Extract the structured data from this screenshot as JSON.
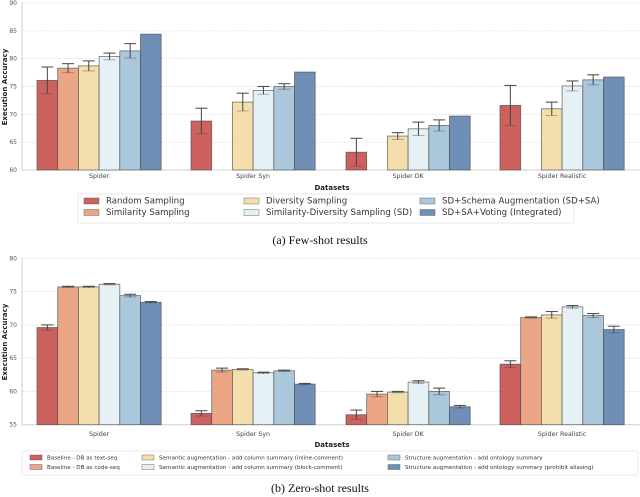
{
  "chart_data": [
    {
      "type": "bar",
      "id": "few-shot",
      "title": "",
      "caption": "(a) Few-shot results",
      "xlabel": "Datasets",
      "ylabel": "Execution Accuracy",
      "ylim": [
        60,
        90
      ],
      "yticks": [
        60,
        65,
        70,
        75,
        80,
        85,
        90
      ],
      "grid": true,
      "legend_placement": "bottom",
      "legend_columns": 3,
      "categories": [
        "Spider",
        "Spider Syn",
        "Spider DK",
        "Spider Realistic"
      ],
      "series": [
        {
          "name": "Random Sampling",
          "color": "#CD615E",
          "values": [
            76.1,
            68.8,
            63.2,
            71.6
          ],
          "errors": [
            2.4,
            2.3,
            2.5,
            3.6
          ]
        },
        {
          "name": "Similarity Sampling",
          "color": "#EBA686",
          "values": [
            78.3,
            null,
            null,
            null
          ],
          "errors": [
            0.8,
            null,
            null,
            null
          ]
        },
        {
          "name": "Diversity Sampling",
          "color": "#F4DFAC",
          "values": [
            78.7,
            72.2,
            66.1,
            71.0
          ],
          "errors": [
            0.9,
            1.6,
            0.6,
            1.2
          ]
        },
        {
          "name": "Similarity-Diversity Sampling (SD)",
          "color": "#E6F1F6",
          "values": [
            80.4,
            74.3,
            67.4,
            75.1
          ],
          "errors": [
            0.6,
            0.7,
            1.2,
            0.9
          ]
        },
        {
          "name": "SD+Schema Augmentation (SD+SA)",
          "color": "#AAC7DC",
          "values": [
            81.4,
            75.0,
            68.0,
            76.2
          ],
          "errors": [
            1.3,
            0.5,
            1.0,
            0.9
          ]
        },
        {
          "name": "SD+SA+Voting (Integrated)",
          "color": "#6F8FB7",
          "values": [
            84.4,
            77.6,
            69.7,
            76.7
          ],
          "errors": [
            null,
            null,
            null,
            null
          ]
        }
      ]
    },
    {
      "type": "bar",
      "id": "zero-shot",
      "title": "",
      "caption": "(b) Zero-shot results",
      "xlabel": "Datasets",
      "ylabel": "Execution Accuracy",
      "ylim": [
        55,
        80
      ],
      "yticks": [
        55,
        60,
        65,
        70,
        75,
        80
      ],
      "grid": true,
      "legend_placement": "bottom",
      "legend_columns": 3,
      "categories": [
        "Spider",
        "Spider Syn",
        "Spider DK",
        "Spider Realistic"
      ],
      "series": [
        {
          "name": "Baseline - DB as text-seq",
          "color": "#CD615E",
          "values": [
            69.6,
            56.7,
            56.5,
            64.1
          ],
          "errors": [
            0.4,
            0.4,
            0.7,
            0.5
          ]
        },
        {
          "name": "Baseline - DB as code-seq",
          "color": "#EBA686",
          "values": [
            75.7,
            63.2,
            59.6,
            71.1
          ],
          "errors": [
            0.1,
            0.3,
            0.4,
            0.1
          ]
        },
        {
          "name": "Semantic augmentation - add column summary (inline-comment)",
          "color": "#F4DFAC",
          "values": [
            75.7,
            63.3,
            59.9,
            71.5
          ],
          "errors": [
            0.1,
            0.1,
            0.1,
            0.5
          ]
        },
        {
          "name": "Semantic augmentation - add column summary (block-comment)",
          "color": "#E6F1F6",
          "values": [
            76.1,
            62.8,
            61.4,
            72.7
          ],
          "errors": [
            0.1,
            0.1,
            0.2,
            0.2
          ]
        },
        {
          "name": "Structure augmentation - add ontology summary",
          "color": "#AAC7DC",
          "values": [
            74.4,
            63.1,
            60.0,
            71.4
          ],
          "errors": [
            0.2,
            0.1,
            0.5,
            0.3
          ]
        },
        {
          "name": "Structure augmentation - add ontology summary (prohibit aliasing)",
          "color": "#6F8FB7",
          "values": [
            73.4,
            61.1,
            57.7,
            69.3
          ],
          "errors": [
            0.1,
            0.1,
            0.2,
            0.5
          ]
        }
      ]
    }
  ]
}
